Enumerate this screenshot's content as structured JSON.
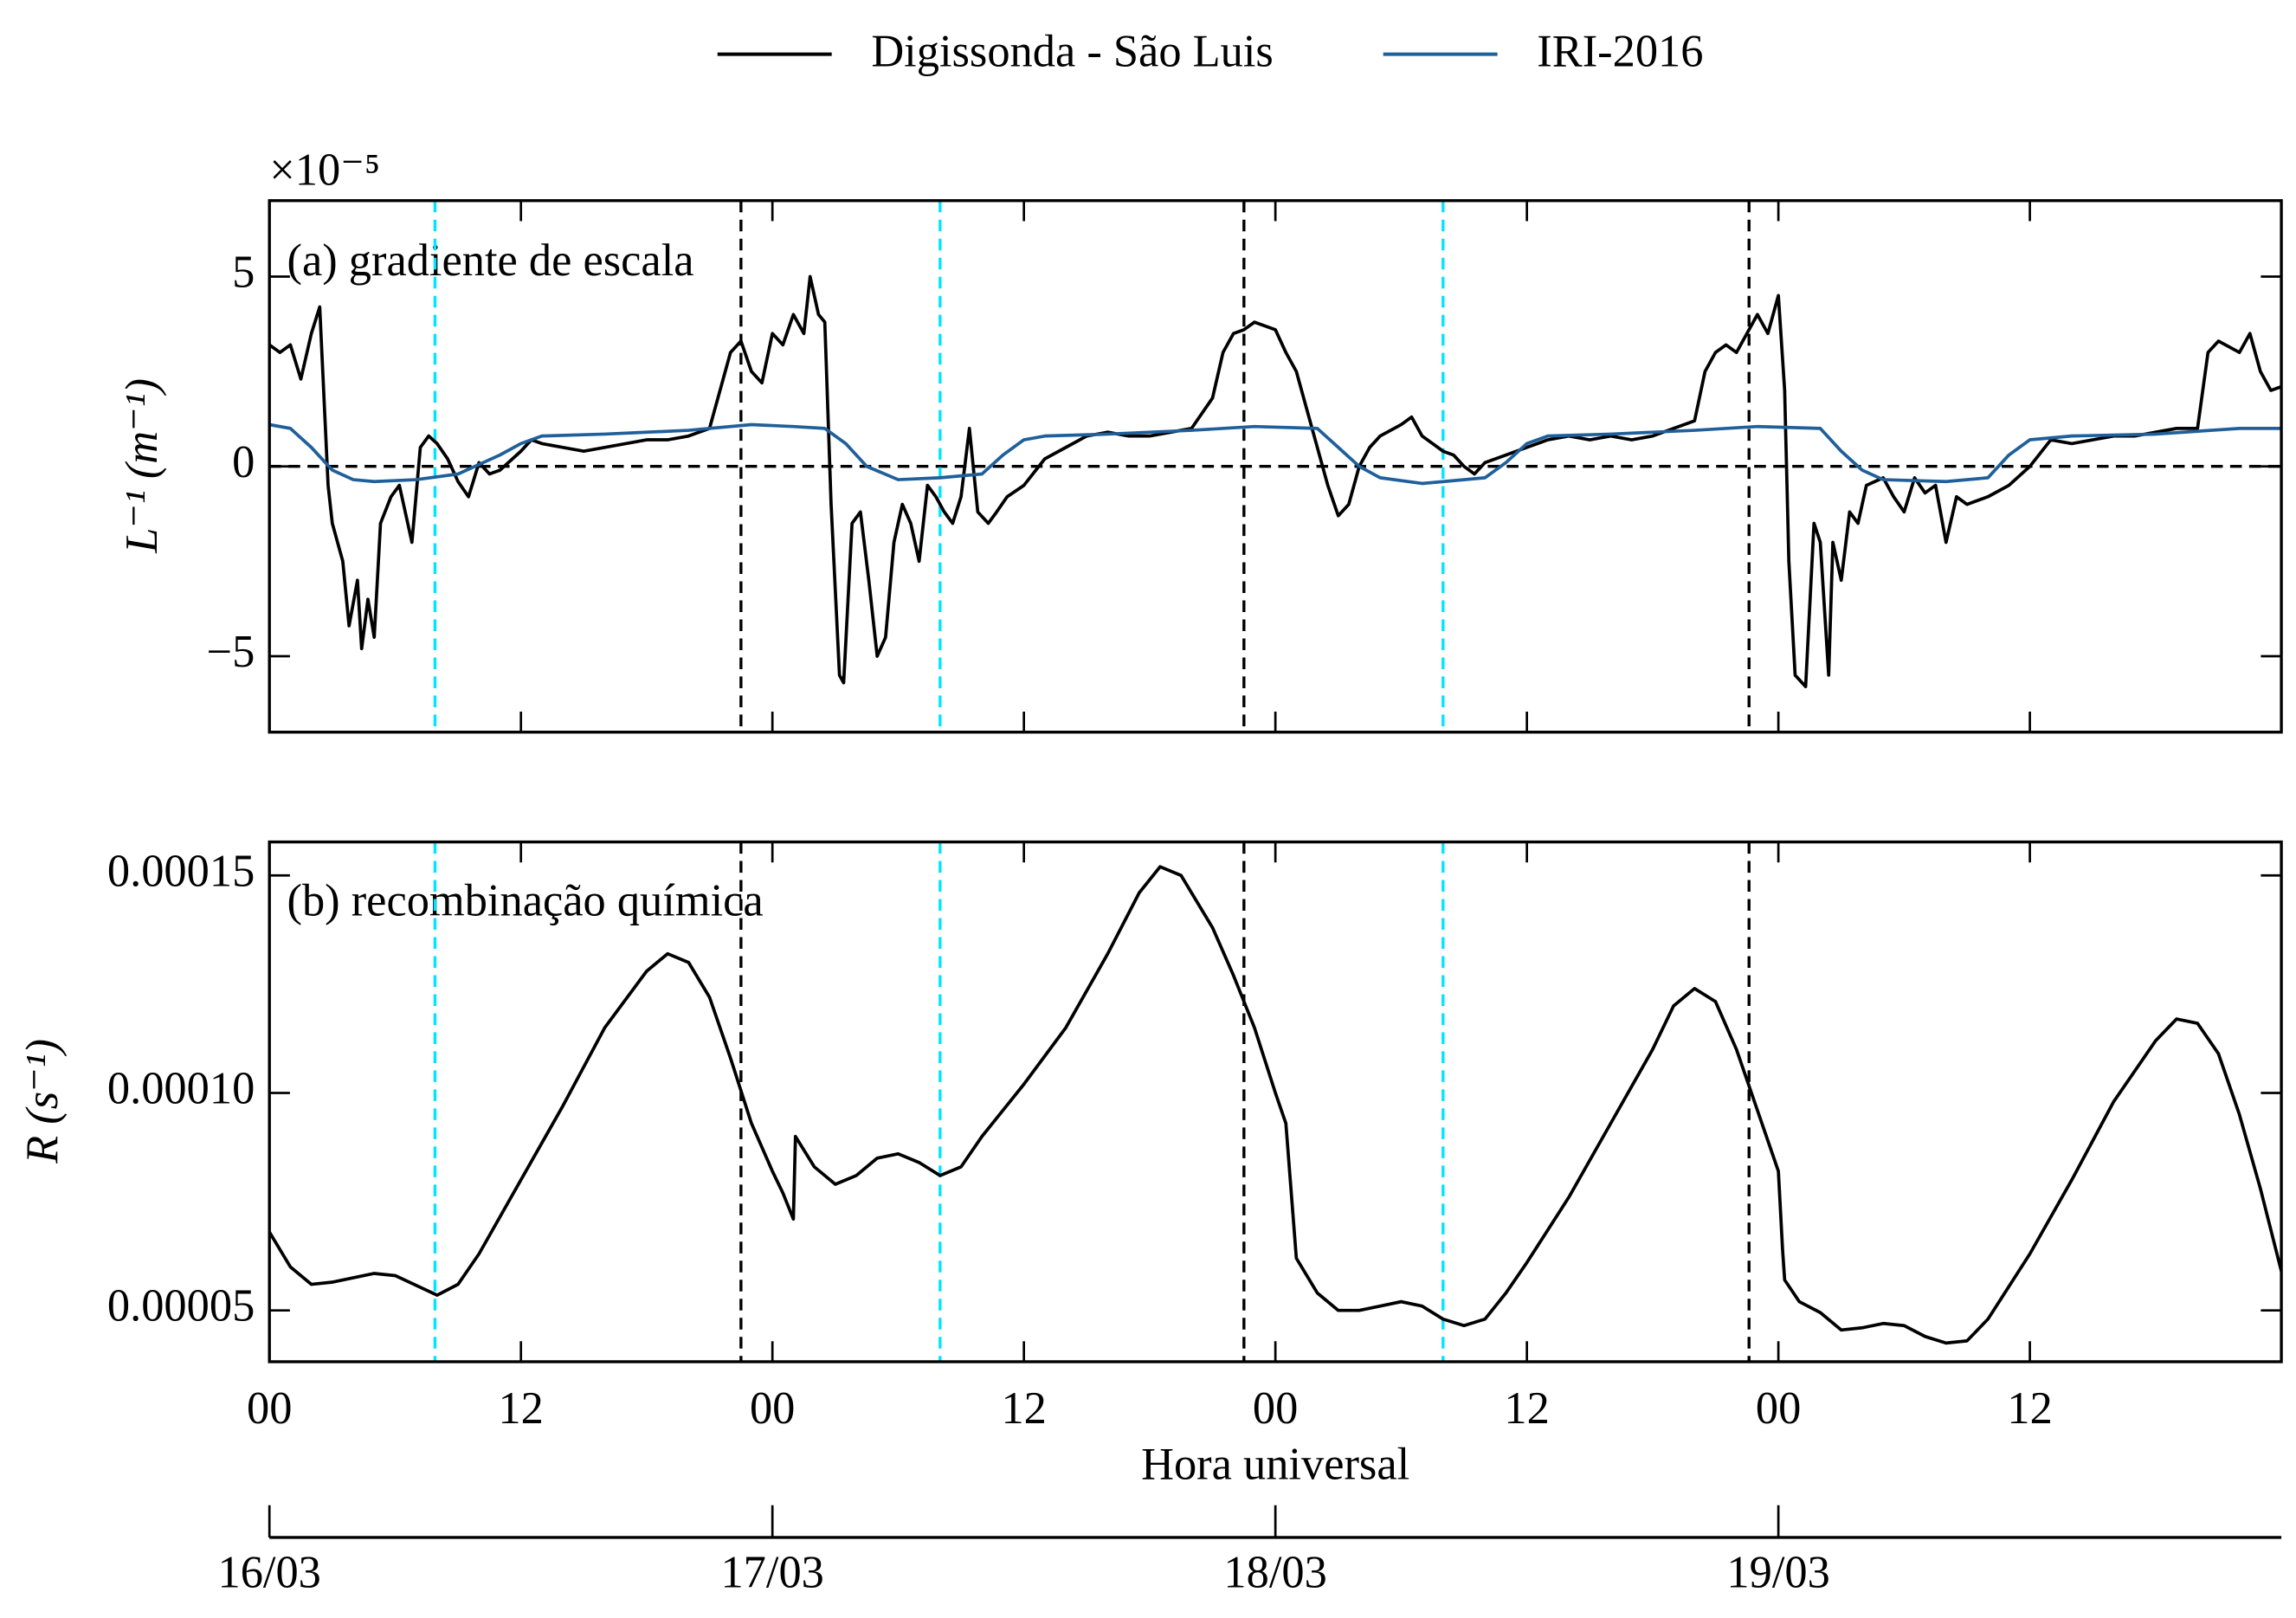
{
  "chart_data": [
    {
      "type": "line",
      "panel_label": "(a) gradiente de escala",
      "ylabel": "L⁻¹ (m⁻¹)",
      "offset_text": "×10⁻⁵",
      "xlim": [
        0,
        96
      ],
      "xticks": [
        0,
        12,
        24,
        36,
        48,
        60,
        72,
        84
      ],
      "ylim": [
        -7,
        7
      ],
      "yticks": [
        {
          "value": -5,
          "label": "−5"
        },
        0,
        5
      ],
      "hline": 0,
      "vlines": [
        {
          "x": 7.9,
          "color": "#00e5ff"
        },
        {
          "x": 22.5,
          "color": "#000000"
        },
        {
          "x": 32,
          "color": "#00e5ff"
        },
        {
          "x": 46.5,
          "color": "#000000"
        },
        {
          "x": 56,
          "color": "#00e5ff"
        },
        {
          "x": 70.6,
          "color": "#000000"
        }
      ],
      "series": [
        {
          "name": "Digissonda - São Luis",
          "color": "#000000",
          "x": [
            0,
            0.5,
            1,
            1.5,
            2,
            2.4,
            2.8,
            3,
            3.5,
            3.8,
            4.2,
            4.4,
            4.7,
            5,
            5.3,
            5.8,
            6.2,
            6.6,
            6.8,
            7.2,
            7.6,
            8,
            8.5,
            9,
            9.5,
            10,
            10.5,
            11,
            12,
            12.5,
            13,
            14,
            15,
            16,
            17,
            18,
            19,
            20,
            21,
            21.5,
            22,
            22.5,
            23,
            23.5,
            24,
            24.5,
            25,
            25.5,
            25.8,
            26.2,
            26.5,
            26.8,
            27.2,
            27.4,
            27.8,
            28.2,
            28.6,
            29,
            29.4,
            29.8,
            30.2,
            30.6,
            31,
            31.4,
            31.8,
            32.2,
            32.6,
            33,
            33.4,
            33.8,
            34.3,
            34.7,
            35.2,
            36,
            37,
            38,
            39,
            40,
            41,
            42,
            43,
            44,
            45,
            45.5,
            46,
            46.5,
            47,
            48,
            48.5,
            49,
            49.5,
            50,
            50.5,
            51,
            51.5,
            52,
            52.5,
            53,
            54,
            54.5,
            55,
            55.5,
            56,
            56.5,
            57,
            57.5,
            58,
            59,
            60,
            61,
            62,
            63,
            64,
            65,
            66,
            67,
            68,
            68.5,
            69,
            69.5,
            70,
            70.5,
            71,
            71.5,
            72,
            72.3,
            72.5,
            72.8,
            73.3,
            73.7,
            74,
            74.4,
            74.6,
            75,
            75.4,
            75.8,
            76.2,
            77,
            77.5,
            78,
            78.5,
            79,
            79.5,
            80,
            80.5,
            81,
            82,
            83,
            84,
            85,
            86,
            87,
            88,
            89,
            90,
            91,
            92,
            92.5,
            93,
            94,
            94.5,
            95,
            95.5,
            96
          ],
          "values": [
            3.2,
            3.0,
            3.2,
            2.3,
            3.5,
            4.2,
            -0.5,
            -1.5,
            -2.5,
            -4.2,
            -3.0,
            -4.8,
            -3.5,
            -4.5,
            -1.5,
            -0.8,
            -0.5,
            -1.5,
            -2.0,
            0.5,
            0.8,
            0.6,
            0.2,
            -0.4,
            -0.8,
            0.1,
            -0.2,
            -0.1,
            0.4,
            0.7,
            0.6,
            0.5,
            0.4,
            0.5,
            0.6,
            0.7,
            0.7,
            0.8,
            1.0,
            2.0,
            3.0,
            3.3,
            2.5,
            2.2,
            3.5,
            3.2,
            4.0,
            3.5,
            5.0,
            4.0,
            3.8,
            -1.0,
            -5.5,
            -5.7,
            -1.5,
            -1.2,
            -3.0,
            -5.0,
            -4.5,
            -2.0,
            -1.0,
            -1.5,
            -2.5,
            -0.5,
            -0.8,
            -1.2,
            -1.5,
            -0.8,
            1.0,
            -1.2,
            -1.5,
            -1.2,
            -0.8,
            -0.5,
            0.2,
            0.5,
            0.8,
            0.9,
            0.8,
            0.8,
            0.9,
            1.0,
            1.8,
            3.0,
            3.5,
            3.6,
            3.8,
            3.6,
            3.0,
            2.5,
            1.5,
            0.5,
            -0.5,
            -1.3,
            -1.0,
            0.0,
            0.5,
            0.8,
            1.1,
            1.3,
            0.8,
            0.6,
            0.4,
            0.3,
            0.0,
            -0.2,
            0.1,
            0.3,
            0.5,
            0.7,
            0.8,
            0.7,
            0.8,
            0.7,
            0.8,
            1.0,
            1.2,
            2.5,
            3.0,
            3.2,
            3.0,
            3.5,
            4.0,
            3.5,
            4.5,
            2.0,
            -2.5,
            -5.5,
            -5.8,
            -1.5,
            -2.0,
            -5.5,
            -2.0,
            -3.0,
            -1.2,
            -1.5,
            -0.5,
            -0.3,
            -0.8,
            -1.2,
            -0.3,
            -0.7,
            -0.5,
            -2.0,
            -0.8,
            -1.0,
            -0.8,
            -0.5,
            0.0,
            0.7,
            0.6,
            0.7,
            0.8,
            0.8,
            0.9,
            1.0,
            1.0,
            3.0,
            3.3,
            3.0,
            3.5,
            2.5,
            2.0,
            2.1
          ]
        },
        {
          "name": "IRI-2016",
          "color": "#1f5f9a",
          "x": [
            0,
            1,
            2,
            3,
            4,
            5,
            7,
            9,
            11,
            12,
            13,
            16,
            20,
            23,
            25,
            26.5,
            27.5,
            28.5,
            30,
            32,
            34,
            35,
            36,
            37,
            40,
            44,
            47,
            50,
            51,
            52,
            53,
            55,
            58,
            59,
            60,
            61,
            64,
            68,
            71,
            74,
            75,
            76,
            77,
            80,
            82,
            83,
            84,
            86,
            90,
            94,
            96
          ],
          "values": [
            1.1,
            1.0,
            0.5,
            -0.1,
            -0.35,
            -0.4,
            -0.35,
            -0.2,
            0.3,
            0.6,
            0.8,
            0.85,
            0.95,
            1.1,
            1.05,
            1.0,
            0.6,
            0.0,
            -0.35,
            -0.3,
            -0.2,
            0.3,
            0.7,
            0.8,
            0.85,
            0.95,
            1.05,
            1.0,
            0.5,
            0.0,
            -0.3,
            -0.45,
            -0.3,
            0.1,
            0.6,
            0.8,
            0.85,
            0.95,
            1.05,
            1.0,
            0.4,
            -0.1,
            -0.35,
            -0.4,
            -0.3,
            0.3,
            0.7,
            0.8,
            0.85,
            1.0,
            1.0
          ]
        }
      ]
    },
    {
      "type": "line",
      "panel_label": "(b) recombinação química",
      "ylabel": "R (s⁻¹)",
      "xlabel": "Hora universal",
      "xlim": [
        0,
        96
      ],
      "xticks": [
        {
          "value": 0,
          "label": "00"
        },
        12,
        {
          "value": 24,
          "label": "00"
        },
        {
          "value": 36,
          "label": "12"
        },
        {
          "value": 48,
          "label": "00"
        },
        {
          "value": 60,
          "label": "12"
        },
        {
          "value": 72,
          "label": "00"
        },
        {
          "value": 84,
          "label": "12"
        }
      ],
      "x2ticks": [
        {
          "value": 0,
          "label": "16/03"
        },
        {
          "value": 24,
          "label": "17/03"
        },
        {
          "value": 48,
          "label": "18/03"
        },
        {
          "value": 72,
          "label": "19/03"
        }
      ],
      "ylim": [
        3.82e-05,
        0.0001577
      ],
      "yticks": [
        5e-05,
        {
          "value": 0.0001,
          "label": "0.00010"
        },
        0.00015
      ],
      "vlines": [
        {
          "x": 7.9,
          "color": "#00e5ff"
        },
        {
          "x": 22.5,
          "color": "#000000"
        },
        {
          "x": 32,
          "color": "#00e5ff"
        },
        {
          "x": 46.5,
          "color": "#000000"
        },
        {
          "x": 56,
          "color": "#00e5ff"
        },
        {
          "x": 70.6,
          "color": "#000000"
        }
      ],
      "series": [
        {
          "color": "#000000",
          "x": [
            0,
            1,
            2,
            3,
            5,
            6,
            8,
            9,
            10,
            12,
            14,
            16,
            18,
            19,
            20,
            21,
            22,
            23,
            24,
            24.5,
            25,
            25.1,
            26,
            27,
            28,
            29,
            30,
            31,
            32,
            33,
            34,
            36,
            38,
            40,
            41.5,
            42.5,
            43.5,
            45,
            46,
            47,
            48,
            48.5,
            49,
            50,
            51,
            52,
            53,
            54,
            55,
            56,
            57,
            58,
            59,
            60,
            62,
            64,
            66,
            67,
            68,
            69,
            70,
            71,
            72,
            72.2,
            72.3,
            73,
            74,
            75,
            76,
            77,
            78,
            79,
            80,
            81,
            82,
            84,
            86,
            88,
            90,
            91,
            92,
            93,
            94,
            95,
            96
          ],
          "values": [
            6.8e-05,
            6e-05,
            5.6e-05,
            5.65e-05,
            5.85e-05,
            5.8e-05,
            5.35e-05,
            5.6e-05,
            6.3e-05,
            8e-05,
            9.7e-05,
            0.000115,
            0.000128,
            0.000132,
            0.00013,
            0.000122,
            0.000108,
            9.3e-05,
            8.2e-05,
            7.7e-05,
            7.1e-05,
            9e-05,
            8.3e-05,
            7.9e-05,
            8.1e-05,
            8.5e-05,
            8.6e-05,
            8.4e-05,
            8.1e-05,
            8.3e-05,
            9e-05,
            0.000102,
            0.000115,
            0.000132,
            0.000146,
            0.000152,
            0.00015,
            0.000138,
            0.000127,
            0.000115,
            0.0001,
            9.3e-05,
            6.2e-05,
            5.4e-05,
            5e-05,
            5e-05,
            5.1e-05,
            5.2e-05,
            5.1e-05,
            4.8e-05,
            4.65e-05,
            4.8e-05,
            5.4e-05,
            6.1e-05,
            7.6e-05,
            9.3e-05,
            0.00011,
            0.00012,
            0.000124,
            0.000121,
            0.00011,
            9.6e-05,
            8.2e-05,
            6.4e-05,
            5.7e-05,
            5.2e-05,
            4.95e-05,
            4.55e-05,
            4.6e-05,
            4.7e-05,
            4.65e-05,
            4.4e-05,
            4.25e-05,
            4.3e-05,
            4.8e-05,
            6.3e-05,
            8e-05,
            9.8e-05,
            0.000112,
            0.000117,
            0.000116,
            0.000109,
            9.5e-05,
            7.8e-05,
            5.9e-05
          ]
        }
      ]
    }
  ]
}
